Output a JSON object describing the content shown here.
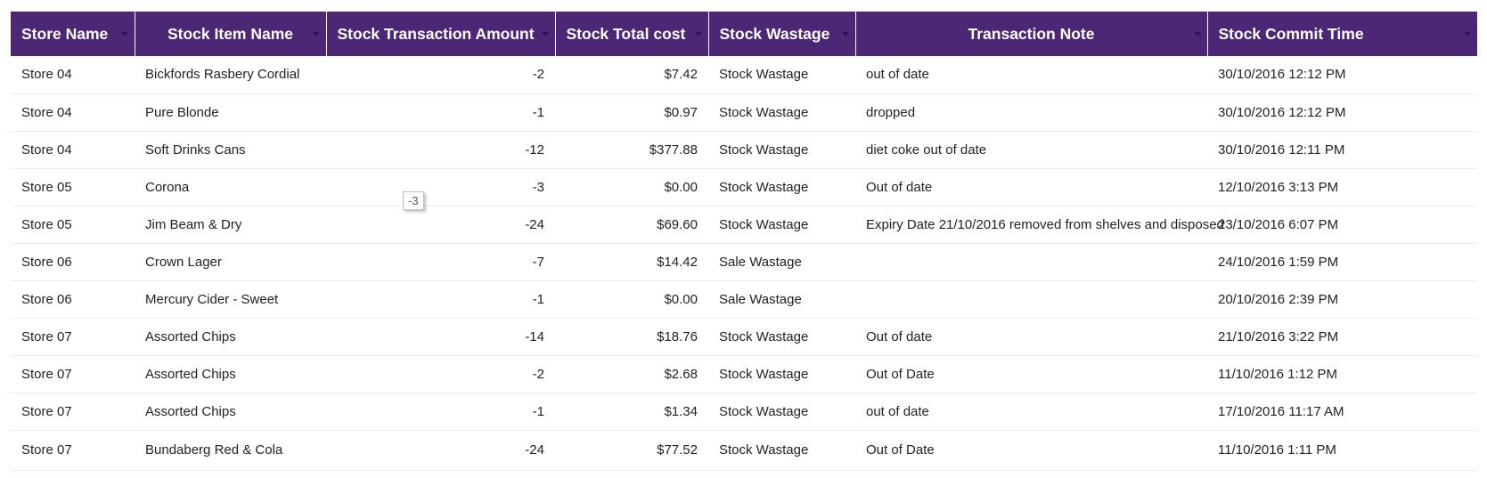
{
  "columns": [
    {
      "label": "Store Name"
    },
    {
      "label": "Stock Item Name"
    },
    {
      "label": "Stock Transaction Amount"
    },
    {
      "label": "Stock Total cost"
    },
    {
      "label": "Stock Wastage"
    },
    {
      "label": "Transaction Note"
    },
    {
      "label": "Stock Commit Time"
    }
  ],
  "rows": [
    {
      "store": "Store 04",
      "item": "Bickfords Rasbery Cordial",
      "amount": "-2",
      "cost": "$7.42",
      "wastage": "Stock Wastage",
      "note": "out of date",
      "time": "30/10/2016 12:12 PM"
    },
    {
      "store": "Store 04",
      "item": "Pure Blonde",
      "amount": "-1",
      "cost": "$0.97",
      "wastage": "Stock Wastage",
      "note": "dropped",
      "time": "30/10/2016 12:12 PM"
    },
    {
      "store": "Store 04",
      "item": "Soft Drinks Cans",
      "amount": "-12",
      "cost": "$377.88",
      "wastage": "Stock Wastage",
      "note": "diet coke out of date",
      "time": "30/10/2016 12:11 PM"
    },
    {
      "store": "Store 05",
      "item": "Corona",
      "amount": "-3",
      "cost": "$0.00",
      "wastage": "Stock Wastage",
      "note": "Out of date",
      "time": "12/10/2016 3:13 PM"
    },
    {
      "store": "Store 05",
      "item": "Jim Beam & Dry",
      "amount": "-24",
      "cost": "$69.60",
      "wastage": "Stock Wastage",
      "note": "Expiry Date 21/10/2016 removed from shelves and disposed",
      "time": "23/10/2016 6:07 PM"
    },
    {
      "store": "Store 06",
      "item": "Crown Lager",
      "amount": "-7",
      "cost": "$14.42",
      "wastage": "Sale Wastage",
      "note": "",
      "time": "24/10/2016 1:59 PM"
    },
    {
      "store": "Store 06",
      "item": "Mercury Cider - Sweet",
      "amount": "-1",
      "cost": "$0.00",
      "wastage": "Sale Wastage",
      "note": "",
      "time": "20/10/2016 2:39 PM"
    },
    {
      "store": "Store 07",
      "item": "Assorted Chips",
      "amount": "-14",
      "cost": "$18.76",
      "wastage": "Stock Wastage",
      "note": "Out of date",
      "time": "21/10/2016 3:22 PM"
    },
    {
      "store": "Store 07",
      "item": "Assorted Chips",
      "amount": "-2",
      "cost": "$2.68",
      "wastage": "Stock Wastage",
      "note": "Out of Date",
      "time": "11/10/2016 1:12 PM"
    },
    {
      "store": "Store 07",
      "item": "Assorted Chips",
      "amount": "-1",
      "cost": "$1.34",
      "wastage": "Stock Wastage",
      "note": "out of date",
      "time": "17/10/2016 11:17 AM"
    },
    {
      "store": "Store 07",
      "item": "Bundaberg Red & Cola",
      "amount": "-24",
      "cost": "$77.52",
      "wastage": "Stock Wastage",
      "note": "Out of Date",
      "time": "11/10/2016 1:11 PM"
    }
  ],
  "tooltip": {
    "text": "-3"
  },
  "colors": {
    "header_bg": "#4b2775",
    "header_text": "#ffffff"
  },
  "icons": {
    "sort": "sort-caret-icon"
  }
}
